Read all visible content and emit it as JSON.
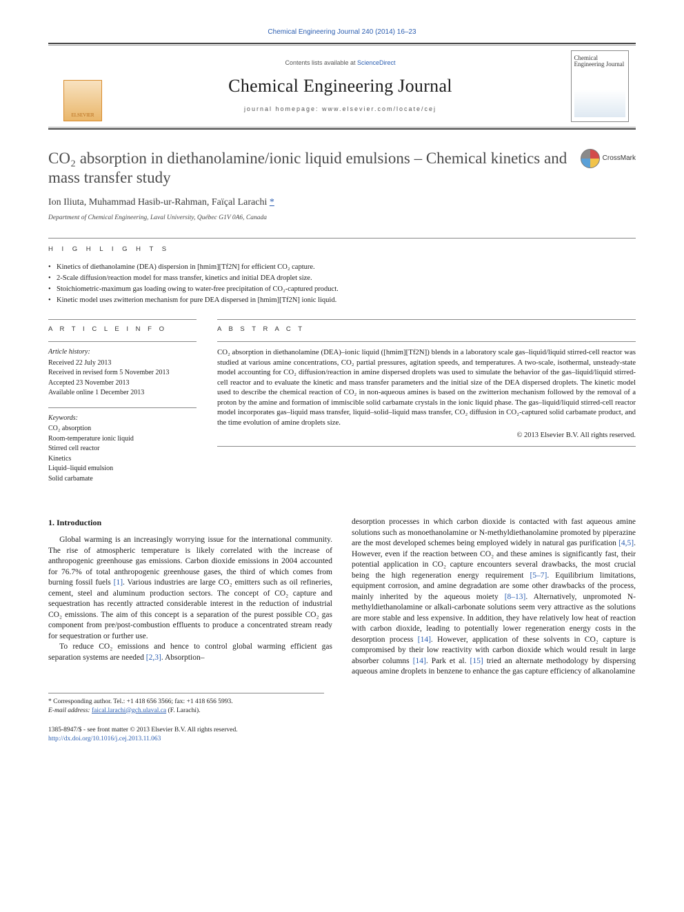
{
  "journal_ref": "Chemical Engineering Journal 240 (2014) 16–23",
  "masthead": {
    "contents_prefix": "Contents lists available at ",
    "contents_link": "ScienceDirect",
    "journal_name": "Chemical Engineering Journal",
    "homepage_prefix": "journal homepage: ",
    "homepage_url": "www.elsevier.com/locate/cej",
    "publisher_logo": "ELSEVIER",
    "cover_title": "Chemical Engineering Journal"
  },
  "crossmark_label": "CrossMark",
  "title": "CO₂ absorption in diethanolamine/ionic liquid emulsions – Chemical kinetics and mass transfer study",
  "authors": "Ion Iliuta, Muhammad Hasib-ur-Rahman, Faïçal Larachi ",
  "corr_mark": "*",
  "affiliation": "Department of Chemical Engineering, Laval University, Québec G1V 0A6, Canada",
  "highlights_label": "H I G H L I G H T S",
  "highlights": [
    "Kinetics of diethanolamine (DEA) dispersion in [hmim][Tf2N] for efficient CO₂ capture.",
    "2-Scale diffusion/reaction model for mass transfer, kinetics and initial DEA droplet size.",
    "Stoichiometric-maximum gas loading owing to water-free precipitation of CO₂-captured product.",
    "Kinetic model uses zwitterion mechanism for pure DEA dispersed in [hmim][Tf2N] ionic liquid."
  ],
  "article_info": {
    "label": "A R T I C L E   I N F O",
    "history_label": "Article history:",
    "received": "Received 22 July 2013",
    "revised": "Received in revised form 5 November 2013",
    "accepted": "Accepted 23 November 2013",
    "online": "Available online 1 December 2013",
    "keywords_label": "Keywords:",
    "keywords": [
      "CO₂ absorption",
      "Room-temperature ionic liquid",
      "Stirred cell reactor",
      "Kinetics",
      "Liquid–liquid emulsion",
      "Solid carbamate"
    ]
  },
  "abstract": {
    "label": "A B S T R A C T",
    "text": "CO₂ absorption in diethanolamine (DEA)–ionic liquid ([hmim][Tf2N]) blends in a laboratory scale gas–liquid/liquid stirred-cell reactor was studied at various amine concentrations, CO₂ partial pressures, agitation speeds, and temperatures. A two-scale, isothermal, unsteady-state model accounting for CO₂ diffusion/reaction in amine dispersed droplets was used to simulate the behavior of the gas–liquid/liquid stirred-cell reactor and to evaluate the kinetic and mass transfer parameters and the initial size of the DEA dispersed droplets. The kinetic model used to describe the chemical reaction of CO₂ in non-aqueous amines is based on the zwitterion mechanism followed by the removal of a proton by the amine and formation of immiscible solid carbamate crystals in the ionic liquid phase. The gas–liquid/liquid stirred-cell reactor model incorporates gas–liquid mass transfer, liquid–solid–liquid mass transfer, CO₂ diffusion in CO₂-captured solid carbamate product, and the time evolution of amine droplets size.",
    "copyright": "© 2013 Elsevier B.V. All rights reserved."
  },
  "body": {
    "section_heading": "1. Introduction",
    "p1": "Global warming is an increasingly worrying issue for the international community. The rise of atmospheric temperature is likely correlated with the increase of anthropogenic greenhouse gas emissions. Carbon dioxide emissions in 2004 accounted for 76.7% of total anthropogenic greenhouse gases, the third of which comes from burning fossil fuels [1]. Various industries are large CO₂ emitters such as oil refineries, cement, steel and aluminum production sectors. The concept of CO₂ capture and sequestration has recently attracted considerable interest in the reduction of industrial CO₂ emissions. The aim of this concept is a separation of the purest possible CO₂ gas component from pre/post-combustion effluents to produce a concentrated stream ready for sequestration or further use.",
    "p2": "To reduce CO₂ emissions and hence to control global warming efficient gas separation systems are needed [2,3]. Absorption–",
    "p3": "desorption processes in which carbon dioxide is contacted with fast aqueous amine solutions such as monoethanolamine or N-methyldiethanolamine promoted by piperazine are the most developed schemes being employed widely in natural gas purification [4,5]. However, even if the reaction between CO₂ and these amines is significantly fast, their potential application in CO₂ capture encounters several drawbacks, the most crucial being the high regeneration energy requirement [5–7]. Equilibrium limitations, equipment corrosion, and amine degradation are some other drawbacks of the process, mainly inherited by the aqueous moiety [8–13]. Alternatively, unpromoted N-methyldiethanolamine or alkali-carbonate solutions seem very attractive as the solutions are more stable and less expensive. In addition, they have relatively low heat of reaction with carbon dioxide, leading to potentially lower regeneration energy costs in the desorption process [14]. However, application of these solvents in CO₂ capture is compromised by their low reactivity with carbon dioxide which would result in large absorber columns [14]. Park et al. [15] tried an alternate methodology by dispersing aqueous amine droplets in benzene to enhance the gas capture efficiency of alkanolamine"
  },
  "footnotes": {
    "corr": "* Corresponding author. Tel.: +1 418 656 3566; fax: +1 418 656 5993.",
    "email_label": "E-mail address: ",
    "email": "faical.larachi@gch.ulaval.ca",
    "email_suffix": " (F. Larachi)."
  },
  "bottom": {
    "issn": "1385-8947/$ - see front matter © 2013 Elsevier B.V. All rights reserved.",
    "doi_label": "http://dx.doi.org/",
    "doi": "10.1016/j.cej.2013.11.063"
  },
  "colors": {
    "link": "#2a5db0",
    "rule": "#444444",
    "text": "#1a1a1a"
  }
}
